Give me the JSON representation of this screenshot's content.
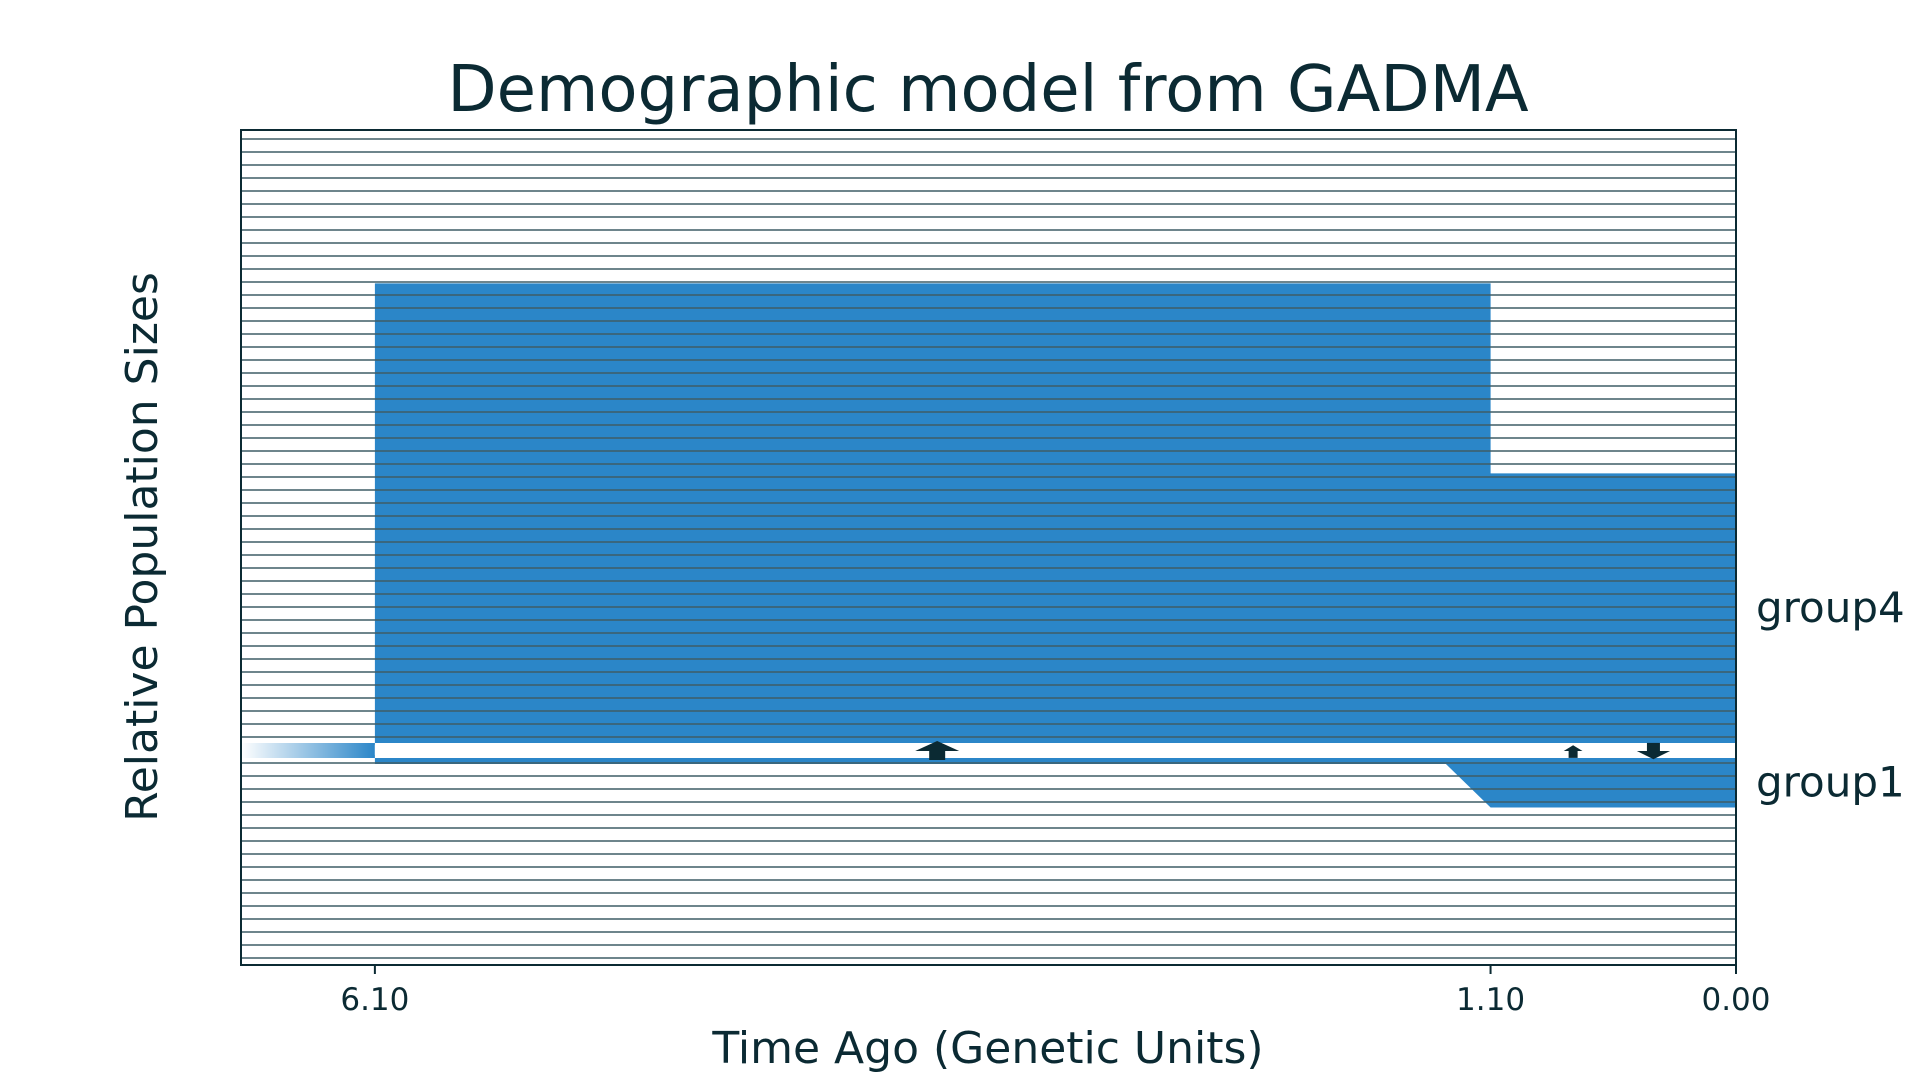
{
  "chart_data": {
    "type": "area",
    "title": "Demographic model from GADMA",
    "xlabel": "Time Ago (Genetic Units)",
    "ylabel": "Relative Population Sizes",
    "x_ticks": [
      {
        "value": 6.1,
        "label": "6.10"
      },
      {
        "value": 1.1,
        "label": "1.10"
      },
      {
        "value": 0.0,
        "label": "0.00"
      }
    ],
    "xlim": [
      6.7,
      0.0
    ],
    "ylim": [
      0,
      1
    ],
    "grid": "horizontal",
    "colors": {
      "population": "#2b86c8",
      "ink": "#0b2a33",
      "background": "#ffffff"
    },
    "populations": [
      {
        "name": "group1",
        "epochs": [
          {
            "start": 6.1,
            "end": 1.3,
            "size_start": 0.0,
            "size_end": 0.0
          },
          {
            "start": 1.3,
            "end": 1.1,
            "size_start": 0.0,
            "size_end": 0.21
          },
          {
            "start": 1.1,
            "end": 0.0,
            "size_start": 0.21,
            "size_end": 0.21
          }
        ]
      },
      {
        "name": "group4",
        "epochs": [
          {
            "start": 6.1,
            "end": 1.1,
            "size_start": 0.74,
            "size_end": 0.74
          },
          {
            "start": 1.1,
            "end": 0.0,
            "size_start": 0.43,
            "size_end": 0.43
          }
        ]
      }
    ],
    "ancestral": {
      "end": 6.1,
      "size": 0.01
    },
    "split_time": 6.1,
    "migrations": [
      {
        "time": 3.58,
        "direction": "up",
        "strength": 1.0
      },
      {
        "time": 0.73,
        "direction": "up",
        "strength": 0.3
      },
      {
        "time": 0.37,
        "direction": "down",
        "strength": 0.7
      }
    ]
  }
}
